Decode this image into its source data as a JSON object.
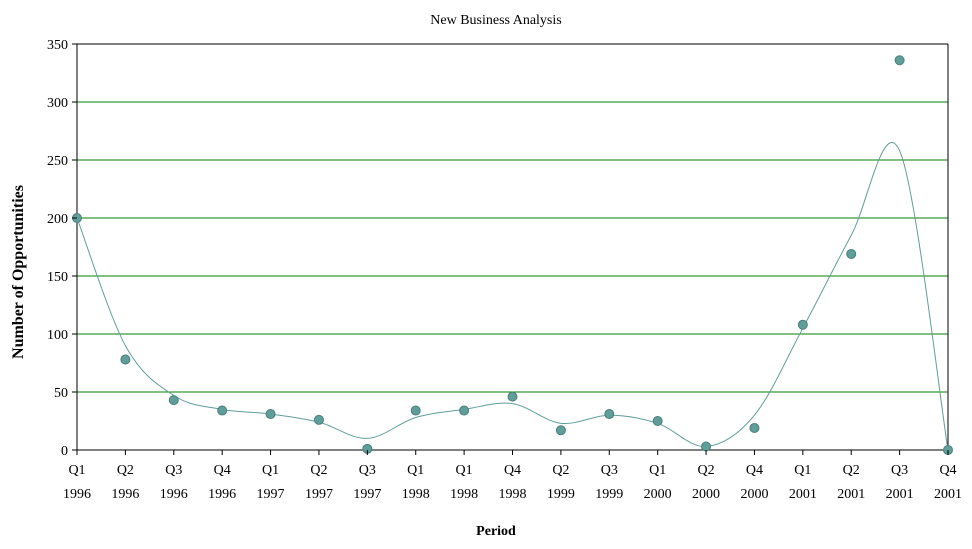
{
  "chart_data": {
    "type": "scatter",
    "title": "New Business Analysis",
    "xlabel": "Period",
    "ylabel": "Number of Opportunities",
    "ylim": [
      0,
      350
    ],
    "yticks": [
      0,
      50,
      100,
      150,
      200,
      250,
      300,
      350
    ],
    "grid": true,
    "categories": [
      [
        "Q1",
        "1996"
      ],
      [
        "Q2",
        "1996"
      ],
      [
        "Q3",
        "1996"
      ],
      [
        "Q4",
        "1996"
      ],
      [
        "Q1",
        "1997"
      ],
      [
        "Q2",
        "1997"
      ],
      [
        "Q3",
        "1997"
      ],
      [
        "Q1",
        "1998"
      ],
      [
        "Q1",
        "1998"
      ],
      [
        "Q4",
        "1998"
      ],
      [
        "Q2",
        "1999"
      ],
      [
        "Q3",
        "1999"
      ],
      [
        "Q1",
        "2000"
      ],
      [
        "Q2",
        "2000"
      ],
      [
        "Q4",
        "2000"
      ],
      [
        "Q1",
        "2001"
      ],
      [
        "Q2",
        "2001"
      ],
      [
        "Q3",
        "2001"
      ],
      [
        "Q4",
        "2001"
      ]
    ],
    "series": [
      {
        "name": "Opportunities",
        "kind": "points",
        "color": "#5f9e9a",
        "values": [
          200,
          78,
          43,
          34,
          31,
          26,
          1,
          34,
          34,
          46,
          17,
          31,
          25,
          3,
          19,
          108,
          169,
          336,
          0
        ]
      },
      {
        "name": "Trend",
        "kind": "smooth-line",
        "color": "#5f9e9a",
        "values": [
          200,
          90,
          47,
          35,
          31,
          24,
          10,
          28,
          35,
          40,
          23,
          30,
          23,
          3,
          30,
          105,
          185,
          258,
          0
        ]
      }
    ],
    "grid_color": "#008000"
  }
}
